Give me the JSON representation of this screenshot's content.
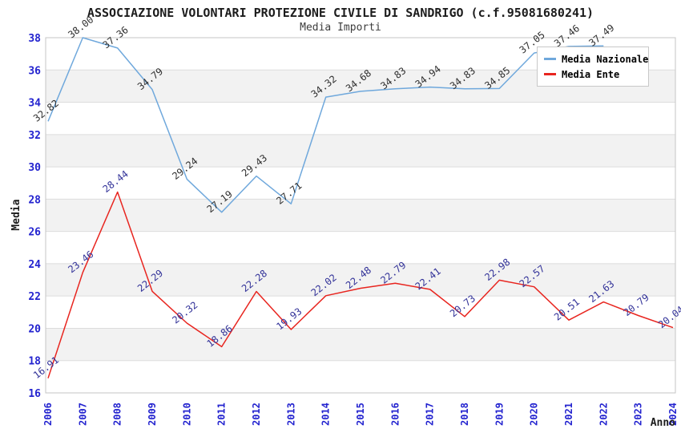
{
  "title": "ASSOCIAZIONE VOLONTARI PROTEZIONE CIVILE DI SANDRIGO (c.f.95081680241)",
  "subtitle": "Media Importi",
  "chart_data": {
    "type": "line",
    "x": [
      2006,
      2007,
      2008,
      2009,
      2010,
      2011,
      2012,
      2013,
      2014,
      2015,
      2016,
      2017,
      2018,
      2019,
      2020,
      2021,
      2022,
      2023,
      2024
    ],
    "xlabel": "Anno",
    "ylabel": "Media",
    "ylim": [
      16,
      38
    ],
    "ytick_step": 2,
    "grid": "horizontal-bands",
    "legend_position": "top-right",
    "series": [
      {
        "name": "Media Nazionale",
        "color": "#6FA8DC",
        "label_color": "#303030",
        "values": [
          32.82,
          38.0,
          37.36,
          34.79,
          29.24,
          27.19,
          29.43,
          27.71,
          34.32,
          34.68,
          34.83,
          34.94,
          34.83,
          34.85,
          37.05,
          37.46,
          37.49,
          null,
          null
        ]
      },
      {
        "name": "Media Ente",
        "color": "#E8251F",
        "label_color": "#333399",
        "values": [
          16.91,
          23.46,
          28.44,
          22.29,
          20.32,
          18.86,
          22.28,
          19.93,
          22.02,
          22.48,
          22.79,
          22.41,
          20.73,
          22.98,
          22.57,
          20.51,
          21.63,
          20.79,
          20.04
        ]
      }
    ],
    "colors": {
      "tick_label": "#2323cf",
      "band": "#f2f2f2",
      "gridline": "#dcdcdc",
      "border": "#c6c6c6"
    }
  }
}
